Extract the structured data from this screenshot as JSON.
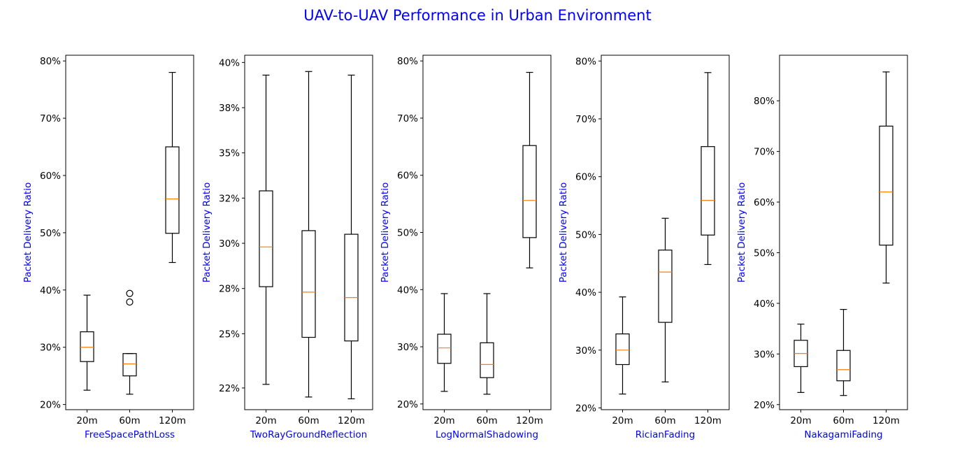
{
  "title": "UAV-to-UAV Performance in Urban Environment",
  "colors": {
    "title": "#0000ff",
    "axis_label": "#0000ff",
    "median": "#ff7f0e",
    "box": "#000000"
  },
  "chart_data": [
    {
      "type": "box",
      "xlabel": "FreeSpacePathLoss",
      "ylabel": "Packet Delivery Ratio",
      "categories": [
        "20m",
        "60m",
        "120m"
      ],
      "ylim": [
        19.1,
        81.0
      ],
      "yticks": [
        20,
        30,
        40,
        50,
        60,
        70,
        80
      ],
      "ytick_labels": [
        "20%",
        "30%",
        "40%",
        "50%",
        "60%",
        "70%",
        "80%"
      ],
      "boxes": [
        {
          "whislo": 22.5,
          "q1": 27.5,
          "median": 30.0,
          "q3": 32.7,
          "whishi": 39.1,
          "fliers": []
        },
        {
          "whislo": 21.8,
          "q1": 25.0,
          "median": 27.1,
          "q3": 28.9,
          "whishi": 28.9,
          "fliers": [
            37.9,
            39.4
          ]
        },
        {
          "whislo": 44.8,
          "q1": 49.9,
          "median": 55.9,
          "q3": 65.0,
          "whishi": 78.0,
          "fliers": []
        }
      ]
    },
    {
      "type": "box",
      "xlabel": "TwoRayGroundReflection",
      "ylabel": "Packet Delivery Ratio",
      "categories": [
        "20m",
        "60m",
        "120m"
      ],
      "ylim": [
        20.8,
        40.4
      ],
      "yticks": [
        22,
        25,
        27.5,
        30,
        32.5,
        35,
        37.5,
        40
      ],
      "ytick_labels": [
        "22%",
        "25%",
        "28%",
        "30%",
        "32%",
        "35%",
        "38%",
        "40%"
      ],
      "boxes": [
        {
          "whislo": 22.2,
          "q1": 27.6,
          "median": 29.8,
          "q3": 32.9,
          "whishi": 39.3,
          "fliers": []
        },
        {
          "whislo": 21.5,
          "q1": 24.8,
          "median": 27.3,
          "q3": 30.7,
          "whishi": 39.5,
          "fliers": []
        },
        {
          "whislo": 21.4,
          "q1": 24.6,
          "median": 27.0,
          "q3": 30.5,
          "whishi": 39.3,
          "fliers": []
        }
      ]
    },
    {
      "type": "box",
      "xlabel": "LogNormalShadowing",
      "ylabel": "Packet Delivery Ratio",
      "categories": [
        "20m",
        "60m",
        "120m"
      ],
      "ylim": [
        19.0,
        81.0
      ],
      "yticks": [
        20,
        30,
        40,
        50,
        60,
        70,
        80
      ],
      "ytick_labels": [
        "20%",
        "30%",
        "40%",
        "50%",
        "60%",
        "70%",
        "80%"
      ],
      "boxes": [
        {
          "whislo": 22.2,
          "q1": 27.1,
          "median": 29.8,
          "q3": 32.2,
          "whishi": 39.3,
          "fliers": []
        },
        {
          "whislo": 21.7,
          "q1": 24.6,
          "median": 26.9,
          "q3": 30.7,
          "whishi": 39.3,
          "fliers": []
        },
        {
          "whislo": 43.8,
          "q1": 49.1,
          "median": 55.6,
          "q3": 65.2,
          "whishi": 78.0,
          "fliers": []
        }
      ]
    },
    {
      "type": "box",
      "xlabel": "RicianFading",
      "ylabel": "Packet Delivery Ratio",
      "categories": [
        "20m",
        "60m",
        "120m"
      ],
      "ylim": [
        19.7,
        81.0
      ],
      "yticks": [
        20,
        30,
        40,
        50,
        60,
        70,
        80
      ],
      "ytick_labels": [
        "20%",
        "30%",
        "40%",
        "50%",
        "60%",
        "70%",
        "80%"
      ],
      "boxes": [
        {
          "whislo": 22.4,
          "q1": 27.5,
          "median": 30.0,
          "q3": 32.8,
          "whishi": 39.2,
          "fliers": []
        },
        {
          "whislo": 24.5,
          "q1": 34.8,
          "median": 43.5,
          "q3": 47.3,
          "whishi": 52.8,
          "fliers": []
        },
        {
          "whislo": 44.8,
          "q1": 49.9,
          "median": 55.9,
          "q3": 65.2,
          "whishi": 78.0,
          "fliers": []
        }
      ]
    },
    {
      "type": "box",
      "xlabel": "NakagamiFading",
      "ylabel": "Packet Delivery Ratio",
      "categories": [
        "20m",
        "60m",
        "120m"
      ],
      "ylim": [
        19.0,
        89.0
      ],
      "yticks": [
        20,
        30,
        40,
        50,
        60,
        70,
        80
      ],
      "ytick_labels": [
        "20%",
        "30%",
        "40%",
        "50%",
        "60%",
        "70%",
        "80%"
      ],
      "boxes": [
        {
          "whislo": 22.4,
          "q1": 27.5,
          "median": 30.1,
          "q3": 32.7,
          "whishi": 35.9,
          "fliers": []
        },
        {
          "whislo": 21.8,
          "q1": 24.7,
          "median": 26.9,
          "q3": 30.7,
          "whishi": 38.8,
          "fliers": []
        },
        {
          "whislo": 44.0,
          "q1": 51.5,
          "median": 62.0,
          "q3": 75.0,
          "whishi": 85.7,
          "fliers": []
        }
      ]
    }
  ]
}
